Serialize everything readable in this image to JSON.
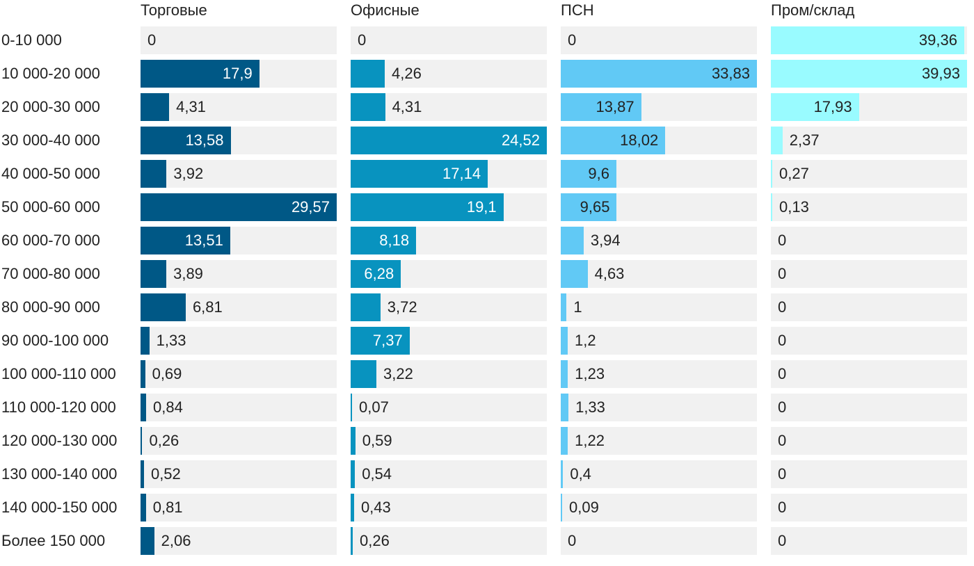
{
  "chart_data": {
    "type": "bar",
    "orientation": "horizontal",
    "categories": [
      "0-10 000",
      "10 000-20 000",
      "20 000-30 000",
      "30 000-40 000",
      "40 000-50 000",
      "50 000-60 000",
      "60 000-70 000",
      "70 000-80 000",
      "80 000-90 000",
      "90 000-100 000",
      "100 000-110 000",
      "110 000-120 000",
      "120 000-130 000",
      "130 000-140 000",
      "140 000-150 000",
      "Более 150 000"
    ],
    "series": [
      {
        "name": "Торговые",
        "color": "#005886",
        "max": 29.57,
        "values": [
          0,
          17.9,
          4.31,
          13.58,
          3.92,
          29.57,
          13.51,
          3.89,
          6.81,
          1.33,
          0.69,
          0.84,
          0.26,
          0.52,
          0.81,
          2.06
        ],
        "labels": [
          "0",
          "17,9",
          "4,31",
          "13,58",
          "3,92",
          "29,57",
          "13,51",
          "3,89",
          "6,81",
          "1,33",
          "0,69",
          "0,84",
          "0,26",
          "0,52",
          "0,81",
          "2,06"
        ]
      },
      {
        "name": "Офисные",
        "color": "#0893bf",
        "max": 24.52,
        "values": [
          0,
          4.26,
          4.31,
          24.52,
          17.14,
          19.1,
          8.18,
          6.28,
          3.72,
          7.37,
          3.22,
          0.07,
          0.59,
          0.54,
          0.43,
          0.26
        ],
        "labels": [
          "0",
          "4,26",
          "4,31",
          "24,52",
          "17,14",
          "19,1",
          "8,18",
          "6,28",
          "3,72",
          "7,37",
          "3,22",
          "0,07",
          "0,59",
          "0,54",
          "0,43",
          "0,26"
        ]
      },
      {
        "name": "ПСН",
        "color": "#61c9f5",
        "max": 33.83,
        "values": [
          0,
          33.83,
          13.87,
          18.02,
          9.6,
          9.65,
          3.94,
          4.63,
          1,
          1.2,
          1.23,
          1.33,
          1.22,
          0.4,
          0.09,
          0
        ],
        "labels": [
          "0",
          "33,83",
          "13,87",
          "18,02",
          "9,6",
          "9,65",
          "3,94",
          "4,63",
          "1",
          "1,2",
          "1,23",
          "1,33",
          "1,22",
          "0,4",
          "0,09",
          "0"
        ]
      },
      {
        "name": "Пром/склад",
        "color": "#99fbff",
        "max": 39.93,
        "values": [
          39.36,
          39.93,
          17.93,
          2.37,
          0.27,
          0.13,
          0,
          0,
          0,
          0,
          0,
          0,
          0,
          0,
          0,
          0
        ],
        "labels": [
          "39,36",
          "39,93",
          "17,93",
          "2,37",
          "0,27",
          "0,13",
          "0",
          "0",
          "0",
          "0",
          "0",
          "0",
          "0",
          "0",
          "0",
          "0"
        ]
      }
    ],
    "legend": "column headers on top",
    "grid": false
  }
}
